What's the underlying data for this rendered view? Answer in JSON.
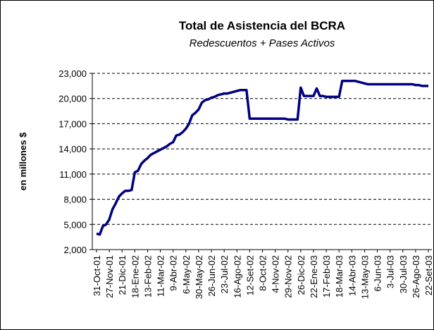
{
  "chart_data": {
    "type": "line",
    "title": "Total de Asistencia del BCRA",
    "subtitle": "Redescuentos + Pases Activos",
    "y_label": "en millones $",
    "categories": [
      "31-Oct-01",
      null,
      null,
      null,
      "27-Nov-01",
      null,
      null,
      null,
      "21-Dic-01",
      null,
      null,
      null,
      "18-Ene-02",
      null,
      null,
      null,
      "13-Feb-02",
      null,
      null,
      null,
      "11-Mar-02",
      null,
      null,
      null,
      "9-Abr-02",
      null,
      null,
      null,
      "6-May-02",
      null,
      null,
      null,
      "30-May-02",
      null,
      null,
      null,
      "26-Jun-02",
      null,
      null,
      null,
      "23-Jul-02",
      null,
      null,
      null,
      "16-Ago-02",
      null,
      null,
      null,
      "12-Set-02",
      null,
      null,
      null,
      "8-Oct-02",
      null,
      null,
      null,
      "4-Nov-02",
      null,
      null,
      null,
      "29-Nov-02",
      null,
      null,
      null,
      "26-Dic-02",
      null,
      null,
      null,
      "22-Ene-03",
      null,
      null,
      null,
      "17-Feb-03",
      null,
      null,
      null,
      "18-Mar-03",
      null,
      null,
      null,
      "14-Abr-03",
      null,
      null,
      null,
      "13-May-03",
      null,
      null,
      null,
      "6-Jun-03",
      null,
      null,
      null,
      "3-Jul-03",
      null,
      null,
      null,
      "30-Jul-03",
      null,
      null,
      null,
      "26-Ago-03",
      null,
      null,
      null,
      "22-Set-03"
    ],
    "series": [
      {
        "name": "Total",
        "color": "#000080",
        "values": [
          3900,
          3800,
          4800,
          5000,
          5600,
          6800,
          7500,
          8300,
          8700,
          9000,
          9000,
          9100,
          11200,
          11400,
          12200,
          12600,
          12900,
          13300,
          13500,
          13700,
          13900,
          14100,
          14300,
          14600,
          14800,
          15600,
          15700,
          16000,
          16400,
          17000,
          18000,
          18300,
          18700,
          19500,
          19800,
          19900,
          20100,
          20200,
          20400,
          20500,
          20600,
          20600,
          20700,
          20800,
          20900,
          21000,
          21000,
          21000,
          17600,
          17600,
          17600,
          17600,
          17600,
          17600,
          17600,
          17600,
          17600,
          17600,
          17600,
          17600,
          17500,
          17500,
          17500,
          17500,
          21300,
          20300,
          20300,
          20300,
          20300,
          21200,
          20300,
          20300,
          20200,
          20200,
          20200,
          20200,
          20200,
          22100,
          22100,
          22100,
          22100,
          22100,
          22000,
          21900,
          21800,
          21700,
          21700,
          21700,
          21700,
          21700,
          21700,
          21700,
          21700,
          21700,
          21700,
          21700,
          21700,
          21700,
          21700,
          21700,
          21600,
          21600,
          21500,
          21500,
          21500
        ]
      }
    ],
    "ylim": [
      2000,
      23000
    ],
    "yticks": [
      {
        "value": 2000,
        "label": "2,000"
      },
      {
        "value": 5000,
        "label": "5,000"
      },
      {
        "value": 8000,
        "label": "8,000"
      },
      {
        "value": 11000,
        "label": "11,000"
      },
      {
        "value": 14000,
        "label": "14,000"
      },
      {
        "value": 17000,
        "label": "17,000"
      },
      {
        "value": 20000,
        "label": "20,000"
      },
      {
        "value": 23000,
        "label": "23,000"
      }
    ],
    "grid": true
  }
}
